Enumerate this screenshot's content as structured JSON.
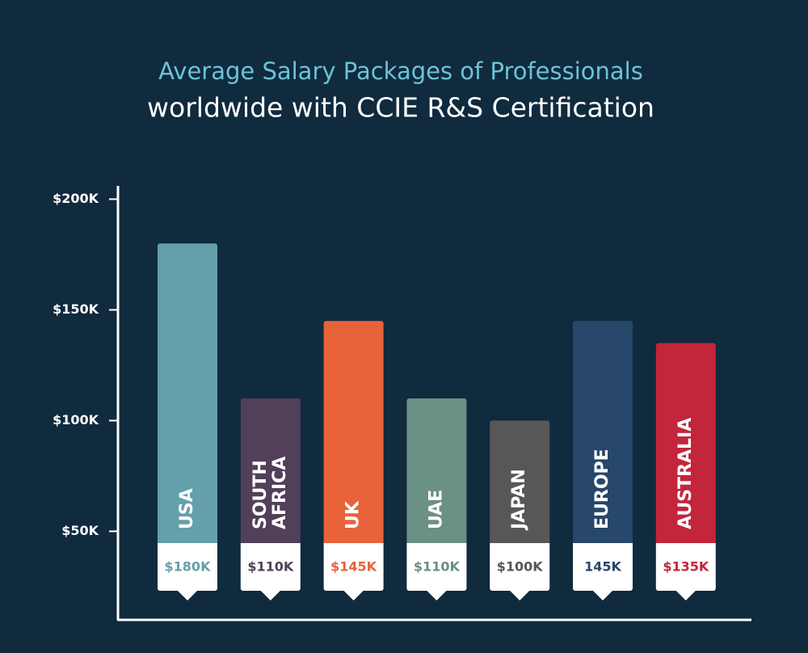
{
  "chart_data": {
    "type": "bar",
    "title": "Average Salary Packages of Professionals",
    "subtitle": "worldwide with CCIE R&S Certification",
    "categories": [
      "USA",
      "SOUTH AFRICA",
      "UK",
      "UAE",
      "JAPAN",
      "EUROPE",
      "AUSTRALIA"
    ],
    "values": [
      180,
      110,
      145,
      110,
      100,
      145,
      135
    ],
    "value_labels": [
      "$180K",
      "$110K",
      "$145K",
      "$110K",
      "$100K",
      "145K",
      "$135K"
    ],
    "colors": [
      "#63a0aa",
      "#523f5a",
      "#e8623a",
      "#6b9085",
      "#575757",
      "#27476b",
      "#c3253a"
    ],
    "ylim": [
      10,
      206
    ],
    "yticks": [
      {
        "value": 50,
        "label": "$50K"
      },
      {
        "value": 100,
        "label": "$100K"
      },
      {
        "value": 150,
        "label": "$150K"
      },
      {
        "value": 200,
        "label": "$200K"
      }
    ]
  }
}
